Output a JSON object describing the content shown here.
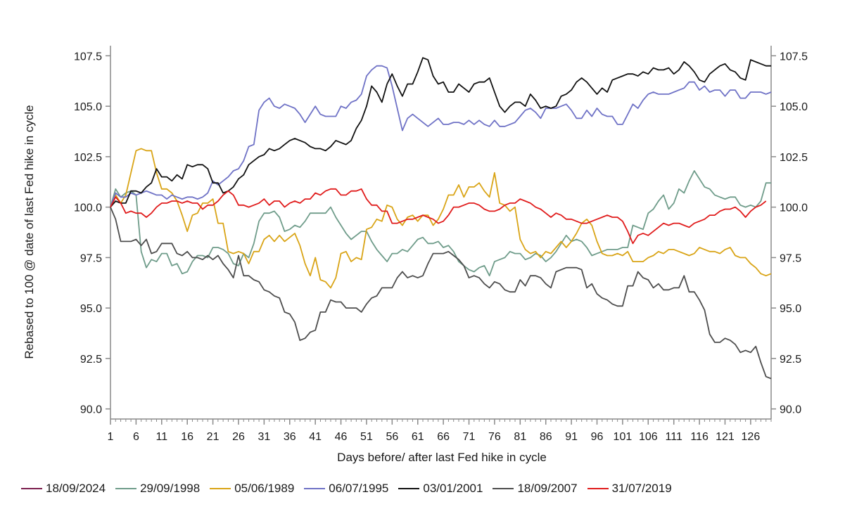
{
  "chart_data": {
    "type": "line",
    "xlabel": "Days before/ after last Fed hike in cycle",
    "ylabel": "Rebased to 100 @ date of last Fed hike in cycle",
    "ylim": [
      89.5,
      108
    ],
    "yticks": [
      "90.0",
      "92.5",
      "95.0",
      "97.5",
      "100.0",
      "102.5",
      "105.0",
      "107.5"
    ],
    "xticks": [
      "1",
      "6",
      "11",
      "16",
      "21",
      "26",
      "31",
      "36",
      "41",
      "46",
      "51",
      "56",
      "61",
      "66",
      "71",
      "76",
      "81",
      "86",
      "91",
      "96",
      "101",
      "106",
      "111",
      "116",
      "121",
      "126"
    ],
    "x_start": 1,
    "x_end": 130,
    "secondary_y_axis": true,
    "grid": false,
    "legend_position": "bottom",
    "series": [
      {
        "name": "18/09/2024",
        "color": "#7b1f4e",
        "values": [
          100.0
        ]
      },
      {
        "name": "29/09/1998",
        "color": "#6f9c8a",
        "values": [
          100.0,
          100.9,
          100.5,
          100.7,
          100.8,
          100.6,
          97.8,
          97.0,
          97.4,
          97.3,
          97.7,
          97.7,
          97.1,
          97.2,
          96.7,
          96.8,
          97.3,
          97.6,
          97.6,
          97.5,
          98.0,
          98.0,
          97.9,
          97.7,
          97.2,
          97.1,
          97.7,
          97.5,
          98.2,
          99.3,
          99.7,
          99.7,
          99.8,
          99.5,
          98.8,
          98.9,
          99.1,
          99.0,
          99.3,
          99.7,
          99.7,
          99.7,
          99.7,
          100.0,
          99.5,
          99.1,
          98.7,
          98.4,
          98.6,
          98.8,
          98.8,
          98.3,
          97.9,
          97.6,
          97.3,
          97.7,
          97.7,
          97.9,
          97.8,
          98.1,
          98.4,
          98.5,
          98.2,
          98.2,
          98.3,
          98.0,
          98.1,
          97.8,
          97.3,
          97.1,
          96.9,
          96.8,
          97.0,
          97.1,
          96.6,
          97.3,
          97.4,
          97.5,
          97.8,
          97.7,
          97.7,
          97.4,
          97.5,
          97.7,
          97.6,
          97.3,
          97.5,
          97.8,
          98.2,
          98.6,
          98.3,
          98.4,
          98.3,
          98.0,
          97.6,
          97.7,
          97.8,
          97.9,
          97.9,
          97.9,
          98.0,
          98.0,
          99.1,
          99.0,
          98.9,
          99.7,
          99.9,
          100.3,
          100.6,
          99.9,
          100.2,
          100.9,
          100.7,
          101.3,
          101.8,
          101.4,
          101.0,
          100.9,
          100.6,
          100.5,
          100.4,
          100.5,
          100.5,
          100.1,
          100.0,
          100.1,
          100.0,
          100.3,
          101.2,
          101.2
        ]
      },
      {
        "name": "05/06/1989",
        "color": "#d9a416",
        "values": [
          100.0,
          100.6,
          100.2,
          100.6,
          101.7,
          102.8,
          102.9,
          102.8,
          102.8,
          101.7,
          100.9,
          100.9,
          100.7,
          100.3,
          99.6,
          98.8,
          99.6,
          99.7,
          100.2,
          100.2,
          100.4,
          99.2,
          99.2,
          97.8,
          97.7,
          97.8,
          97.7,
          97.2,
          97.8,
          97.8,
          98.4,
          98.6,
          98.3,
          98.6,
          98.3,
          98.5,
          98.7,
          98.1,
          97.2,
          96.6,
          97.5,
          96.4,
          96.3,
          96.0,
          96.5,
          97.7,
          97.8,
          97.3,
          97.5,
          97.4,
          98.9,
          99.0,
          99.4,
          99.3,
          100.1,
          100.0,
          99.4,
          99.1,
          99.5,
          99.6,
          99.3,
          99.6,
          99.6,
          99.1,
          99.4,
          99.9,
          100.6,
          100.6,
          101.1,
          100.5,
          101.0,
          101.0,
          101.2,
          100.8,
          100.5,
          101.7,
          100.2,
          100.1,
          99.8,
          100.0,
          98.4,
          97.9,
          97.7,
          97.8,
          97.5,
          97.8,
          97.7,
          98.0,
          98.3,
          98.0,
          98.3,
          98.7,
          99.2,
          99.4,
          99.1,
          98.3,
          97.7,
          97.6,
          97.6,
          97.7,
          97.6,
          97.8,
          97.3,
          97.3,
          97.3,
          97.5,
          97.6,
          97.8,
          97.7,
          97.9,
          97.9,
          97.8,
          97.7,
          97.6,
          97.7,
          98.0,
          97.9,
          97.8,
          97.8,
          97.7,
          97.9,
          98.0,
          97.6,
          97.5,
          97.5,
          97.2,
          97.0,
          96.7,
          96.6,
          96.7
        ]
      },
      {
        "name": "06/07/1995",
        "color": "#6f72c6",
        "values": [
          100.0,
          100.7,
          100.5,
          100.5,
          100.7,
          100.6,
          100.7,
          100.8,
          100.7,
          100.6,
          100.6,
          100.4,
          100.6,
          100.5,
          100.4,
          100.5,
          100.5,
          100.4,
          100.5,
          100.7,
          101.3,
          101.1,
          101.3,
          101.5,
          101.8,
          101.9,
          102.3,
          103.0,
          103.1,
          104.8,
          105.2,
          105.4,
          105.0,
          104.9,
          105.1,
          105.0,
          104.9,
          104.6,
          104.2,
          104.6,
          105.0,
          104.6,
          104.5,
          104.5,
          104.5,
          105.0,
          104.9,
          105.2,
          105.3,
          105.6,
          106.5,
          106.8,
          107.0,
          107.0,
          106.9,
          106.0,
          104.9,
          103.8,
          104.4,
          104.6,
          104.4,
          104.2,
          104.0,
          104.2,
          104.4,
          104.1,
          104.1,
          104.2,
          104.2,
          104.1,
          104.3,
          104.1,
          104.3,
          104.1,
          104.0,
          104.3,
          104.0,
          104.0,
          104.1,
          104.2,
          104.5,
          104.8,
          104.9,
          104.7,
          104.4,
          104.9,
          104.9,
          104.9,
          105.0,
          105.1,
          104.8,
          104.4,
          104.4,
          104.8,
          104.5,
          104.9,
          104.6,
          104.5,
          104.5,
          104.1,
          104.1,
          104.6,
          105.1,
          104.9,
          105.3,
          105.6,
          105.7,
          105.6,
          105.6,
          105.6,
          105.7,
          105.8,
          105.9,
          106.2,
          106.2,
          105.8,
          106.0,
          105.7,
          105.8,
          105.8,
          105.5,
          105.8,
          105.8,
          105.4,
          105.4,
          105.7,
          105.7,
          105.7,
          105.6,
          105.7
        ]
      },
      {
        "name": "03/01/2001",
        "color": "#111111",
        "values": [
          100.0,
          100.3,
          100.2,
          100.2,
          100.8,
          100.8,
          100.7,
          101.0,
          101.2,
          101.9,
          101.5,
          101.5,
          101.3,
          101.6,
          101.4,
          102.1,
          102.0,
          102.1,
          102.1,
          101.9,
          101.2,
          101.2,
          100.7,
          100.8,
          101.0,
          101.4,
          101.6,
          102.1,
          102.3,
          102.5,
          102.6,
          102.9,
          102.8,
          102.9,
          103.1,
          103.3,
          103.4,
          103.3,
          103.2,
          103.0,
          102.9,
          102.9,
          102.8,
          103.0,
          103.3,
          103.2,
          103.1,
          103.3,
          103.9,
          104.3,
          105.0,
          106.0,
          105.7,
          105.2,
          106.1,
          106.6,
          106.0,
          105.5,
          106.1,
          106.1,
          106.7,
          107.4,
          107.3,
          106.5,
          106.1,
          106.2,
          105.7,
          105.7,
          106.1,
          105.9,
          105.7,
          106.1,
          106.2,
          106.2,
          106.4,
          105.7,
          105.0,
          104.7,
          105.0,
          105.2,
          105.2,
          105.0,
          105.6,
          105.3,
          104.9,
          105.0,
          104.9,
          105.0,
          105.5,
          105.6,
          105.8,
          106.2,
          106.4,
          106.2,
          105.9,
          105.6,
          105.9,
          105.7,
          106.3,
          106.4,
          106.5,
          106.6,
          106.6,
          106.5,
          106.7,
          106.6,
          106.9,
          106.8,
          106.8,
          106.9,
          106.6,
          106.8,
          107.2,
          107.0,
          106.7,
          106.3,
          106.2,
          106.6,
          106.8,
          107.0,
          107.1,
          106.8,
          106.7,
          106.4,
          106.3,
          107.3,
          107.2,
          107.1,
          107.0,
          107.0
        ]
      },
      {
        "name": "18/09/2007",
        "color": "#4d4d4d",
        "values": [
          100.0,
          99.4,
          98.3,
          98.3,
          98.3,
          98.4,
          98.1,
          98.4,
          97.7,
          97.8,
          98.2,
          98.2,
          98.2,
          97.7,
          97.6,
          97.8,
          97.5,
          97.5,
          97.4,
          97.6,
          97.4,
          97.6,
          97.2,
          96.9,
          96.5,
          97.6,
          96.6,
          96.6,
          96.4,
          96.3,
          95.9,
          95.8,
          95.6,
          95.5,
          94.8,
          94.7,
          94.3,
          93.4,
          93.5,
          93.8,
          93.9,
          94.8,
          94.8,
          95.4,
          95.3,
          95.3,
          95.0,
          95.0,
          95.0,
          94.8,
          95.2,
          95.5,
          95.6,
          96.0,
          96.0,
          96.0,
          96.5,
          96.8,
          96.5,
          96.6,
          96.5,
          96.6,
          97.2,
          97.7,
          97.7,
          97.7,
          97.8,
          97.6,
          97.4,
          97.1,
          96.5,
          96.6,
          96.5,
          96.2,
          96.0,
          96.3,
          96.2,
          95.9,
          95.8,
          95.8,
          96.4,
          96.1,
          96.6,
          96.6,
          96.5,
          96.2,
          96.0,
          96.8,
          96.9,
          97.0,
          97.0,
          97.0,
          96.9,
          96.0,
          96.2,
          95.7,
          95.5,
          95.4,
          95.2,
          95.1,
          95.1,
          96.1,
          96.1,
          96.8,
          96.5,
          96.4,
          96.0,
          96.2,
          95.9,
          95.9,
          96.0,
          96.0,
          96.6,
          95.8,
          95.8,
          95.4,
          94.9,
          93.7,
          93.3,
          93.3,
          93.5,
          93.4,
          93.2,
          92.8,
          92.9,
          92.8,
          93.1,
          92.3,
          91.6,
          91.5
        ]
      },
      {
        "name": "31/07/2019",
        "color": "#e01b1b",
        "values": [
          100.0,
          100.5,
          100.2,
          99.7,
          99.8,
          99.7,
          99.7,
          99.5,
          99.7,
          100.0,
          100.2,
          100.2,
          100.3,
          100.3,
          100.2,
          100.3,
          100.2,
          100.2,
          99.9,
          100.1,
          100.1,
          100.3,
          100.6,
          100.8,
          100.6,
          100.1,
          100.1,
          100.0,
          100.1,
          100.2,
          100.4,
          100.1,
          100.3,
          100.3,
          100.0,
          100.2,
          100.3,
          100.2,
          100.4,
          100.4,
          100.7,
          100.6,
          100.8,
          100.9,
          100.9,
          100.6,
          100.6,
          100.8,
          100.8,
          100.9,
          100.4,
          100.1,
          100.1,
          99.8,
          99.8,
          99.2,
          99.2,
          99.3,
          99.4,
          99.4,
          99.5,
          99.6,
          99.5,
          99.4,
          99.2,
          99.3,
          99.6,
          100.0,
          100.0,
          100.1,
          100.2,
          100.2,
          100.1,
          99.9,
          99.8,
          99.8,
          99.9,
          100.1,
          100.2,
          100.2,
          100.4,
          100.3,
          100.2,
          100.0,
          99.9,
          99.7,
          99.5,
          99.7,
          99.6,
          99.4,
          99.4,
          99.3,
          99.2,
          99.2,
          99.3,
          99.4,
          99.5,
          99.6,
          99.5,
          99.5,
          99.3,
          98.8,
          98.2,
          98.6,
          98.7,
          98.6,
          98.8,
          99.0,
          99.2,
          99.1,
          99.2,
          99.2,
          99.1,
          99.0,
          99.2,
          99.3,
          99.4,
          99.6,
          99.6,
          99.8,
          99.9,
          99.9,
          100.0,
          99.8,
          99.5,
          99.8,
          100.0,
          100.1,
          100.3
        ]
      }
    ]
  }
}
